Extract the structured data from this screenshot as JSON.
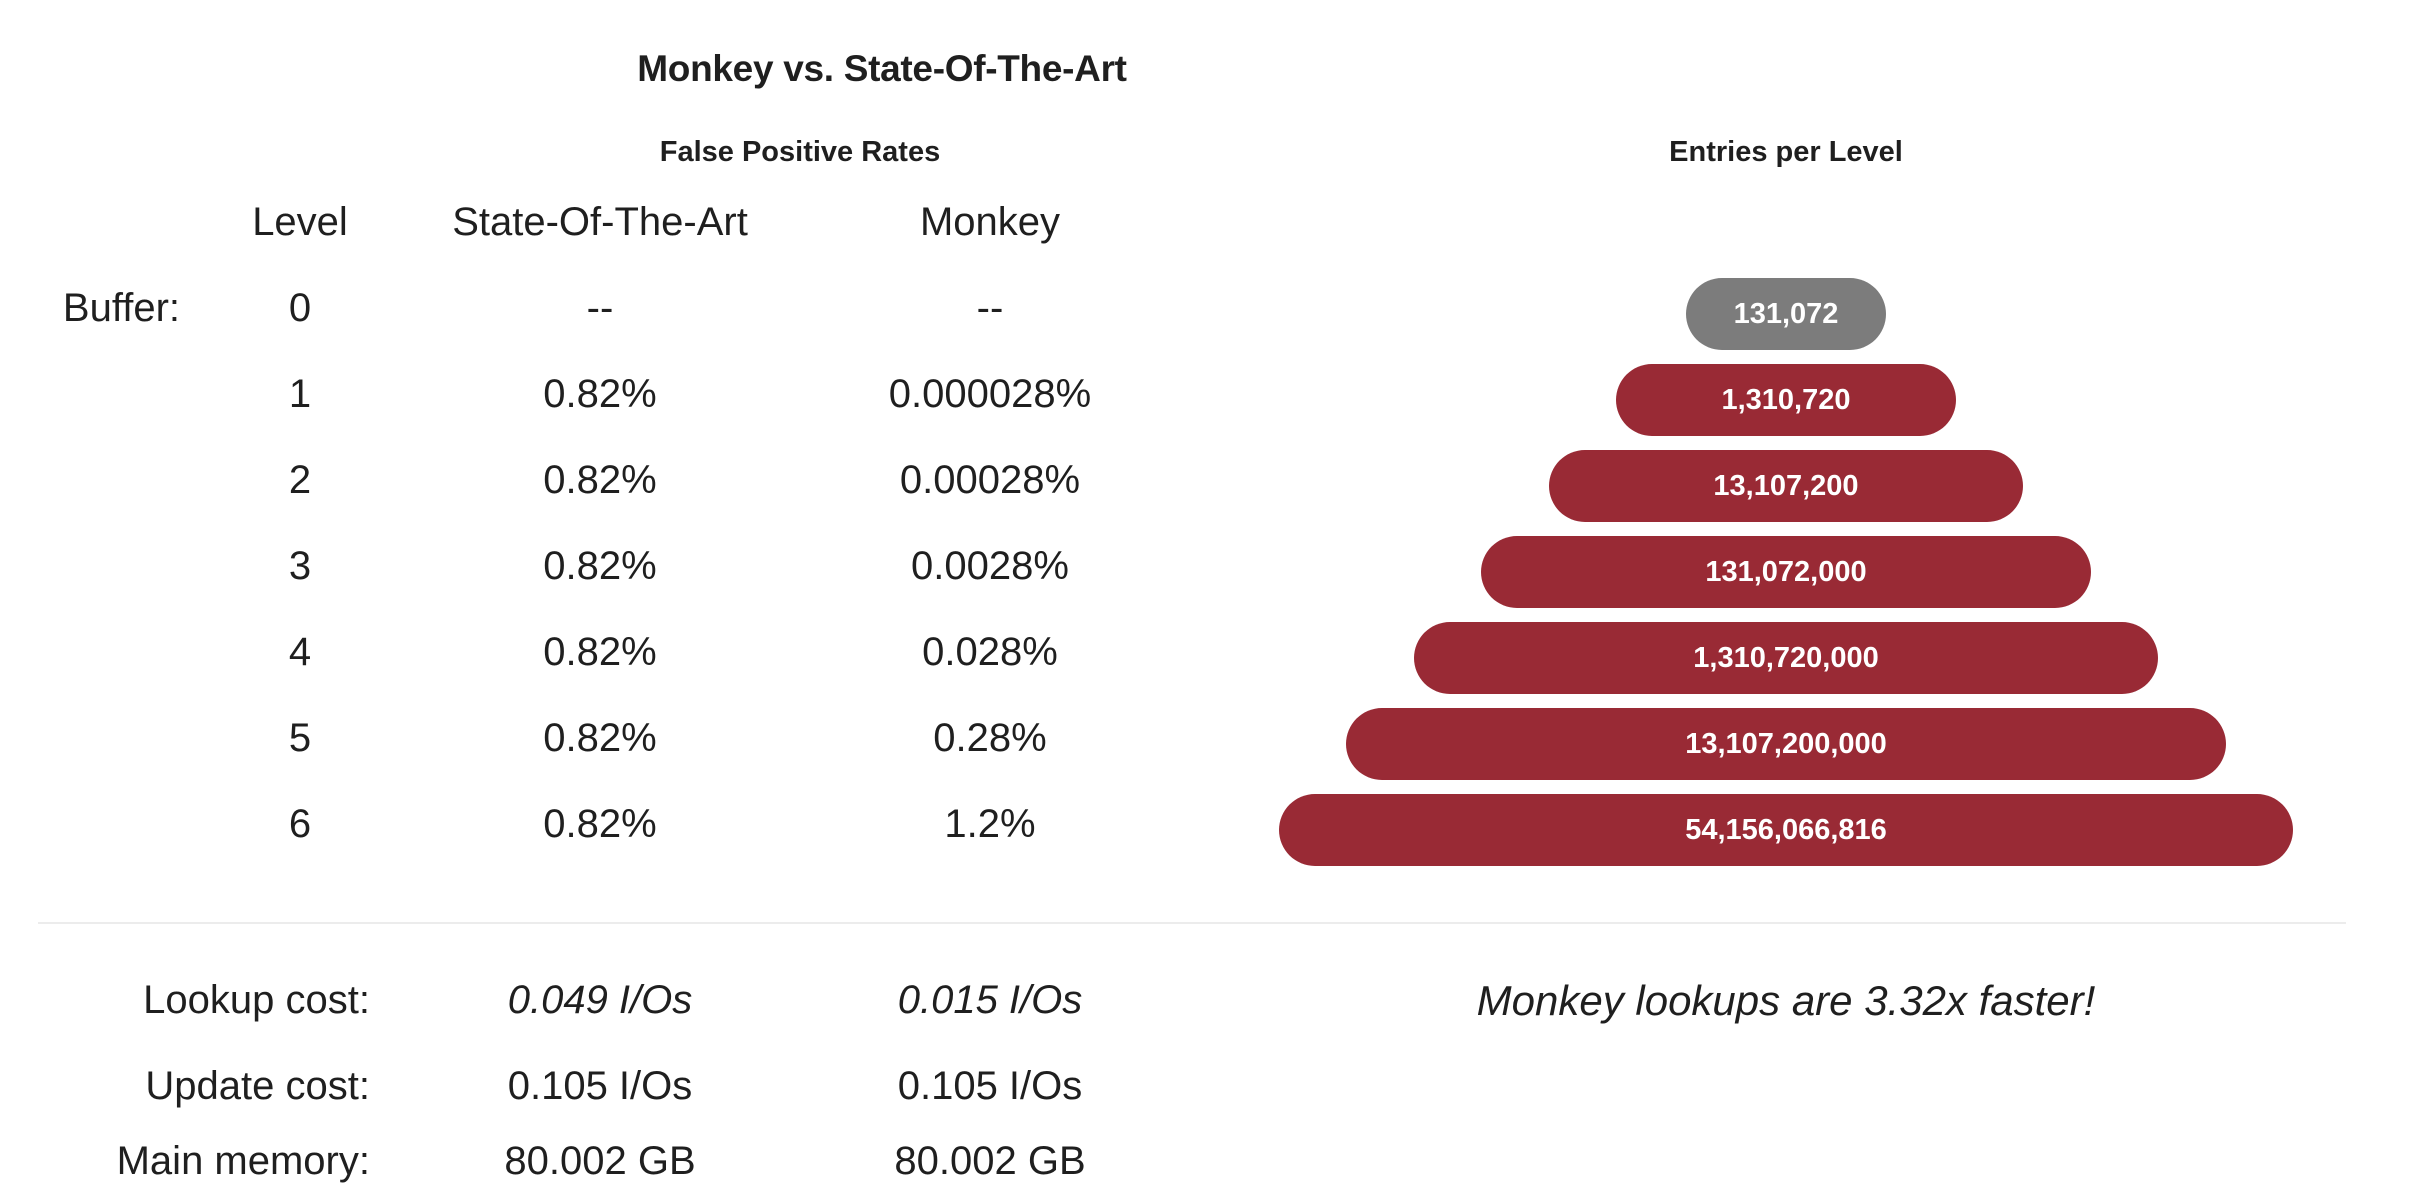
{
  "title": "Monkey vs. State-Of-The-Art",
  "fpr_table": {
    "title": "False Positive Rates",
    "headers": {
      "level": "Level",
      "sota": "State-Of-The-Art",
      "monkey": "Monkey"
    },
    "buffer_label": "Buffer:",
    "rows": [
      {
        "level": "0",
        "sota": "--",
        "monkey": "--"
      },
      {
        "level": "1",
        "sota": "0.82%",
        "monkey": "0.000028%"
      },
      {
        "level": "2",
        "sota": "0.82%",
        "monkey": "0.00028%"
      },
      {
        "level": "3",
        "sota": "0.82%",
        "monkey": "0.0028%"
      },
      {
        "level": "4",
        "sota": "0.82%",
        "monkey": "0.028%"
      },
      {
        "level": "5",
        "sota": "0.82%",
        "monkey": "0.28%"
      },
      {
        "level": "6",
        "sota": "0.82%",
        "monkey": "1.2%"
      }
    ]
  },
  "entries": {
    "title": "Entries per Level",
    "levels": [
      {
        "label": "131,072",
        "kind": "buffer"
      },
      {
        "label": "1,310,720",
        "kind": "level"
      },
      {
        "label": "13,107,200",
        "kind": "level"
      },
      {
        "label": "131,072,000",
        "kind": "level"
      },
      {
        "label": "1,310,720,000",
        "kind": "level"
      },
      {
        "label": "13,107,200,000",
        "kind": "level"
      },
      {
        "label": "54,156,066,816",
        "kind": "level"
      }
    ],
    "colors": {
      "buffer": "#7c7c7c",
      "level": "#992a35"
    }
  },
  "costs": {
    "lookup": {
      "label": "Lookup cost:",
      "sota": "0.049 I/Os",
      "monkey": "0.015 I/Os"
    },
    "update": {
      "label": "Update cost:",
      "sota": "0.105 I/Os",
      "monkey": "0.105 I/Os"
    },
    "memory": {
      "label": "Main memory:",
      "sota": "80.002 GB",
      "monkey": "80.002 GB"
    }
  },
  "summary": "Monkey lookups are 3.32x faster!"
}
